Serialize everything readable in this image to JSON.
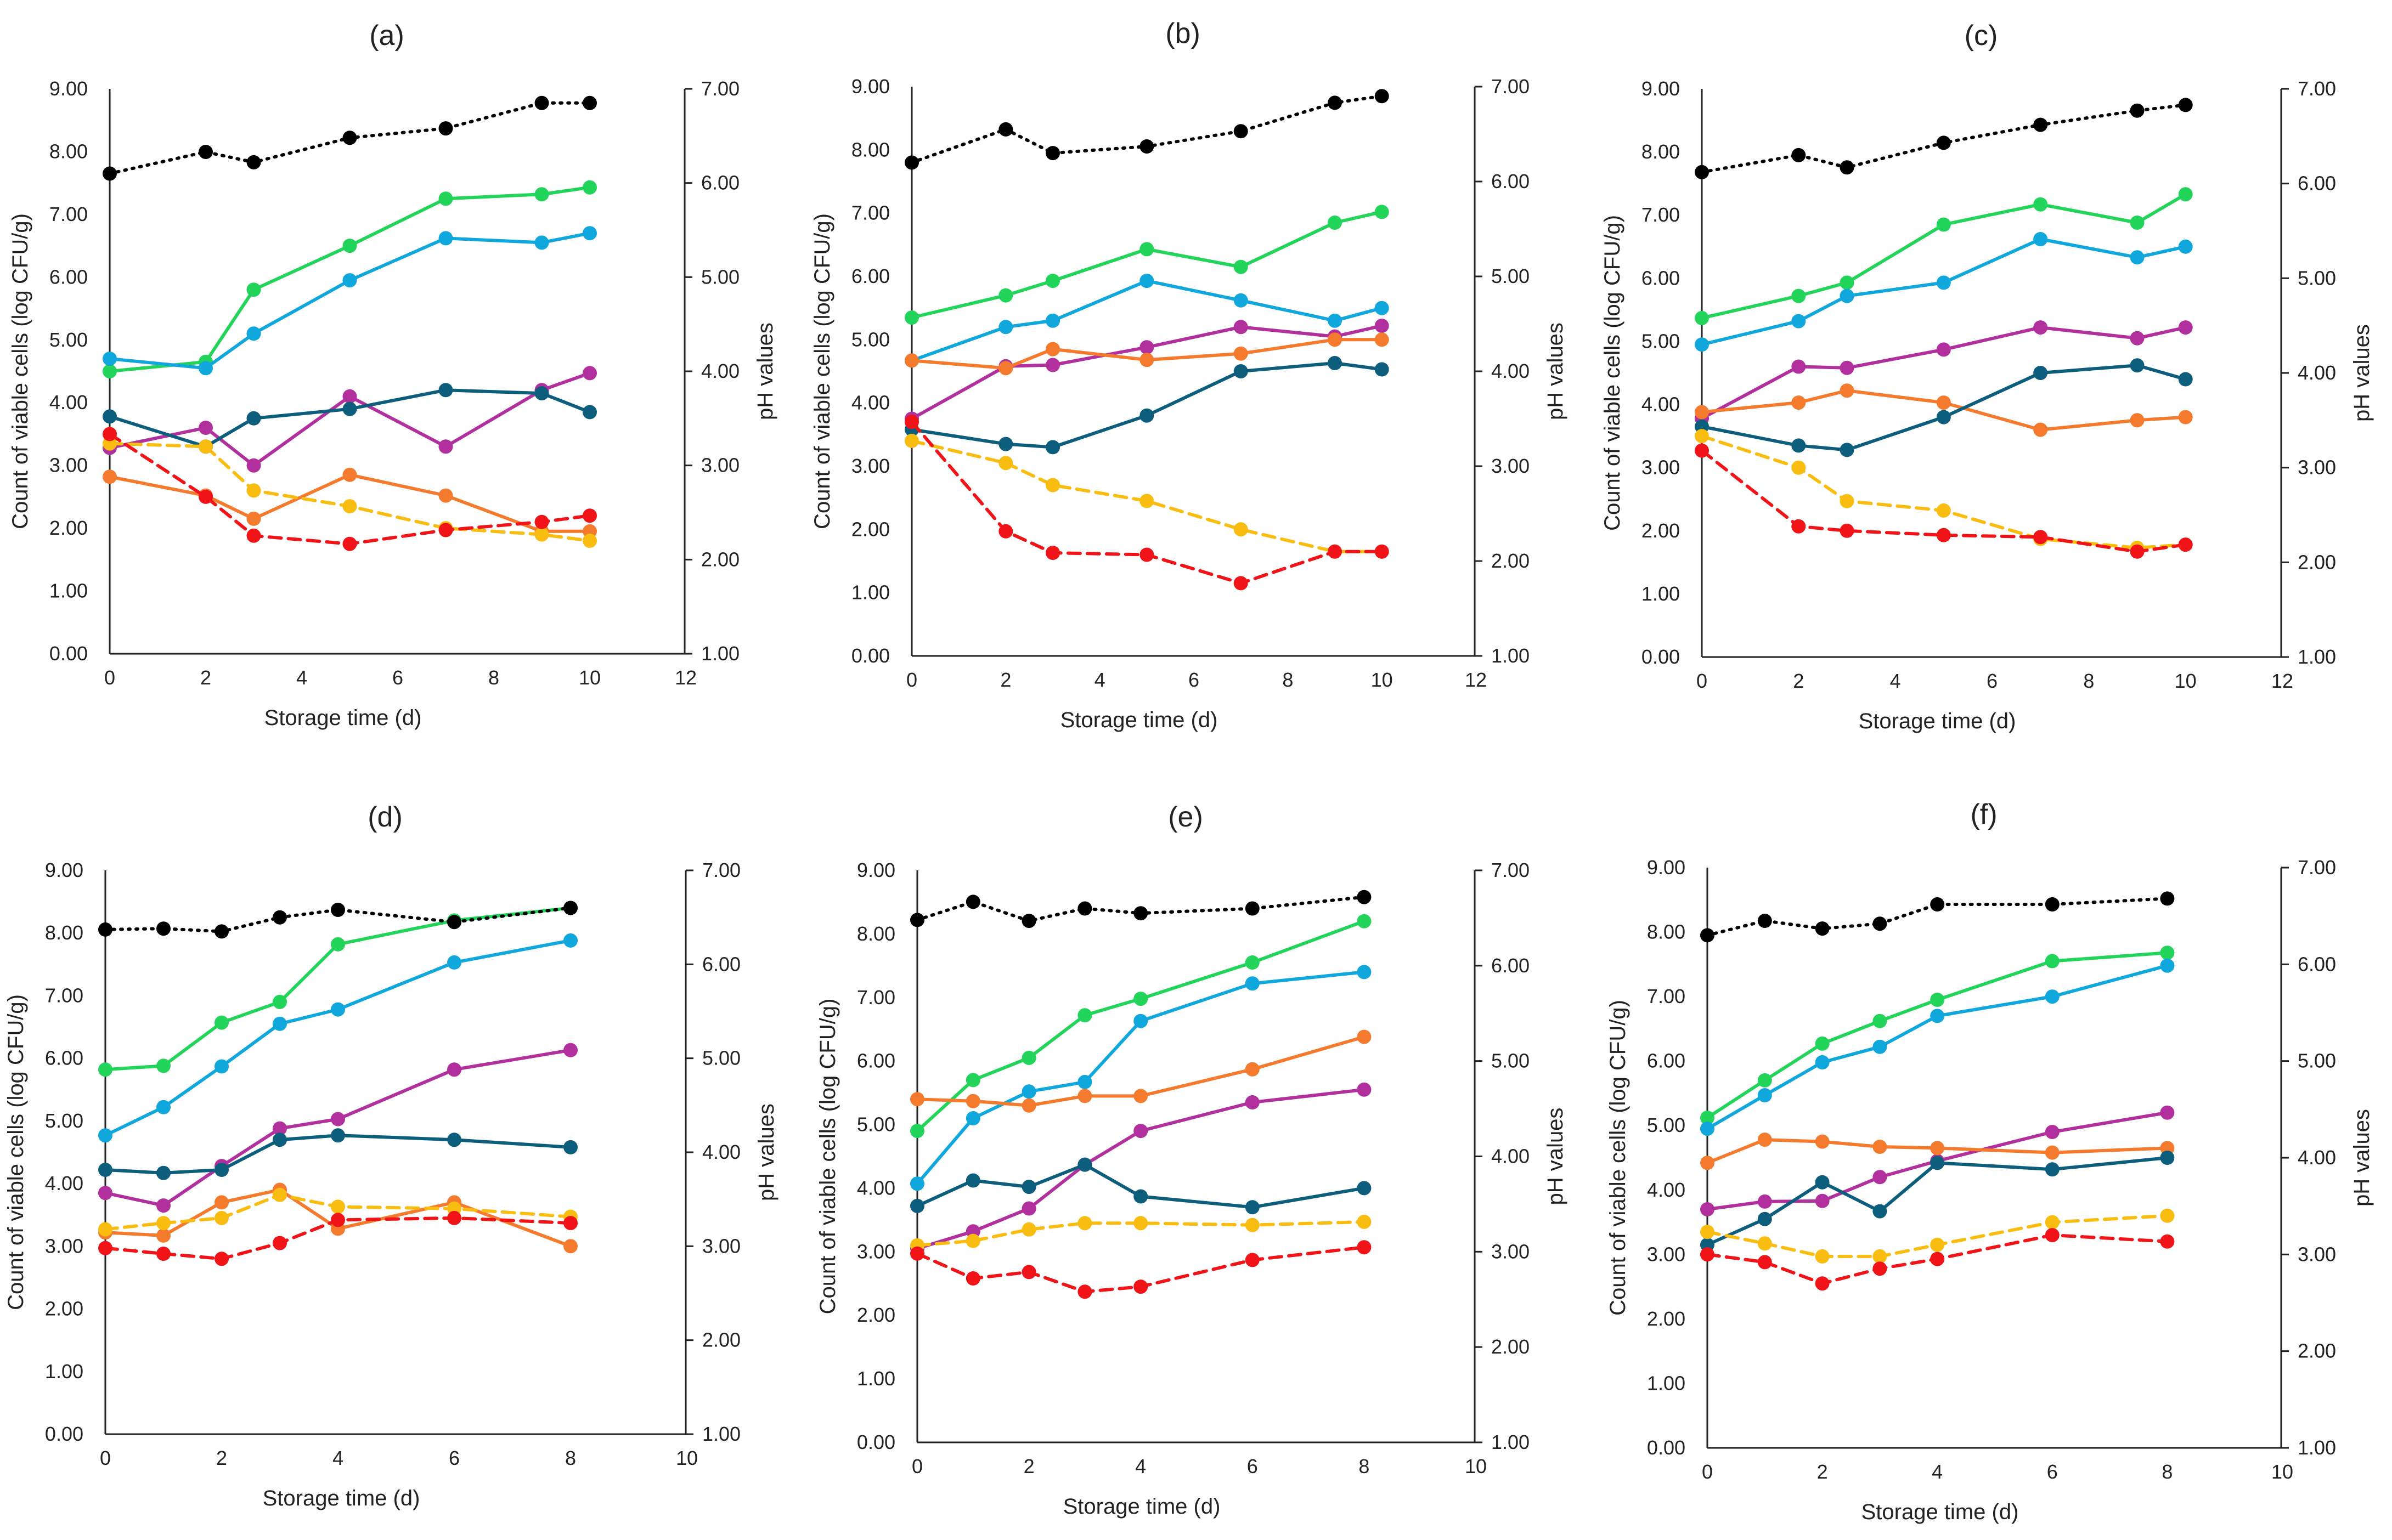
{
  "figure": {
    "panel_count": 6
  },
  "series_styles": [
    {
      "key": "green",
      "color": "#22d45a",
      "dash": "solid"
    },
    {
      "key": "blue",
      "color": "#10a7dd",
      "dash": "solid"
    },
    {
      "key": "purple",
      "color": "#b1309d",
      "dash": "solid"
    },
    {
      "key": "orange",
      "color": "#f47a2e",
      "dash": "solid"
    },
    {
      "key": "teal",
      "color": "#0d5e7c",
      "dash": "solid"
    },
    {
      "key": "yellow",
      "color": "#f8bd10",
      "dash": "dashed"
    },
    {
      "key": "red",
      "color": "#f01418",
      "dash": "dashed"
    },
    {
      "key": "black",
      "color": "#000000",
      "dash": "dotted"
    }
  ],
  "chart_data": [
    {
      "type": "line",
      "panel_label": "(a)",
      "xlabel": "Storage time (d)",
      "ylabel": "Count of viable cells (log CFU/g)",
      "y2label": "pH values",
      "xlim": [
        0,
        12
      ],
      "xticks": [
        "0",
        "2",
        "4",
        "6",
        "8",
        "10",
        "12"
      ],
      "ylim": [
        0,
        9
      ],
      "yticks": [
        "0.00",
        "1.00",
        "2.00",
        "3.00",
        "4.00",
        "5.00",
        "6.00",
        "7.00",
        "8.00",
        "9.00"
      ],
      "y2lim": [
        1,
        7
      ],
      "y2ticks": [
        "1.00",
        "2.00",
        "3.00",
        "4.00",
        "5.00",
        "6.00",
        "7.00"
      ],
      "x": [
        0,
        2,
        3,
        5,
        7,
        9,
        10
      ],
      "series": [
        {
          "key": "green",
          "axis": "left",
          "values": [
            4.5,
            4.65,
            5.8,
            6.5,
            7.25,
            7.32,
            7.43
          ]
        },
        {
          "key": "blue",
          "axis": "left",
          "values": [
            4.7,
            4.55,
            5.1,
            5.95,
            6.62,
            6.55,
            6.7
          ]
        },
        {
          "key": "purple",
          "axis": "left",
          "values": [
            3.28,
            3.6,
            3.0,
            4.1,
            3.3,
            4.2,
            4.47
          ]
        },
        {
          "key": "orange",
          "axis": "left",
          "values": [
            2.82,
            2.52,
            2.15,
            2.85,
            2.52,
            1.95,
            1.95
          ]
        },
        {
          "key": "teal",
          "axis": "left",
          "values": [
            3.78,
            3.3,
            3.75,
            3.9,
            4.2,
            4.15,
            3.85
          ]
        },
        {
          "key": "yellow",
          "axis": "left",
          "values": [
            3.35,
            3.3,
            2.6,
            2.35,
            2.0,
            1.9,
            1.8
          ]
        },
        {
          "key": "red",
          "axis": "left",
          "values": [
            3.5,
            2.5,
            1.88,
            1.75,
            1.97,
            2.1,
            2.2
          ]
        },
        {
          "key": "black",
          "axis": "right",
          "values": [
            6.1,
            6.33,
            6.22,
            6.48,
            6.58,
            6.85,
            6.85
          ]
        }
      ]
    },
    {
      "type": "line",
      "panel_label": "(b)",
      "xlabel": "Storage time (d)",
      "ylabel": "Count of viable cells (log CFU/g)",
      "y2label": "pH values",
      "xlim": [
        0,
        12
      ],
      "xticks": [
        "0",
        "2",
        "4",
        "6",
        "8",
        "10",
        "12"
      ],
      "ylim": [
        0,
        9
      ],
      "yticks": [
        "0.00",
        "1.00",
        "2.00",
        "3.00",
        "4.00",
        "5.00",
        "6.00",
        "7.00",
        "8.00",
        "9.00"
      ],
      "y2lim": [
        1,
        7
      ],
      "y2ticks": [
        "1.00",
        "2.00",
        "3.00",
        "4.00",
        "5.00",
        "6.00",
        "7.00"
      ],
      "x": [
        0,
        2,
        3,
        5,
        7,
        9,
        10
      ],
      "series": [
        {
          "key": "green",
          "axis": "left",
          "values": [
            5.35,
            5.7,
            5.93,
            6.43,
            6.15,
            6.85,
            7.02
          ]
        },
        {
          "key": "blue",
          "axis": "left",
          "values": [
            4.67,
            5.2,
            5.3,
            5.93,
            5.62,
            5.3,
            5.5
          ]
        },
        {
          "key": "purple",
          "axis": "left",
          "values": [
            3.75,
            4.58,
            4.6,
            4.88,
            5.2,
            5.05,
            5.22
          ]
        },
        {
          "key": "orange",
          "axis": "left",
          "values": [
            4.67,
            4.55,
            4.85,
            4.68,
            4.78,
            5.0,
            5.0
          ]
        },
        {
          "key": "teal",
          "axis": "left",
          "values": [
            3.58,
            3.35,
            3.3,
            3.8,
            4.5,
            4.63,
            4.53
          ]
        },
        {
          "key": "yellow",
          "axis": "left",
          "values": [
            3.4,
            3.05,
            2.7,
            2.45,
            2.0,
            1.65,
            1.65
          ]
        },
        {
          "key": "red",
          "axis": "left",
          "values": [
            3.7,
            1.97,
            1.63,
            1.6,
            1.15,
            1.65,
            1.65
          ]
        },
        {
          "key": "black",
          "axis": "right",
          "values": [
            6.2,
            6.55,
            6.3,
            6.37,
            6.53,
            6.83,
            6.9
          ]
        }
      ]
    },
    {
      "type": "line",
      "panel_label": "(c)",
      "xlabel": "Storage time (d)",
      "ylabel": "Count of viable cells (log CFU/g)",
      "y2label": "pH values",
      "xlim": [
        0,
        12
      ],
      "xticks": [
        "0",
        "2",
        "4",
        "6",
        "8",
        "10",
        "12"
      ],
      "ylim": [
        0,
        9
      ],
      "yticks": [
        "0.00",
        "1.00",
        "2.00",
        "3.00",
        "4.00",
        "5.00",
        "6.00",
        "7.00",
        "8.00",
        "9.00"
      ],
      "y2lim": [
        1,
        7
      ],
      "y2ticks": [
        "1.00",
        "2.00",
        "3.00",
        "4.00",
        "5.00",
        "6.00",
        "7.00"
      ],
      "x": [
        0,
        2,
        3,
        5,
        7,
        9,
        10
      ],
      "series": [
        {
          "key": "green",
          "axis": "left",
          "values": [
            5.37,
            5.72,
            5.93,
            6.85,
            7.17,
            6.88,
            7.33
          ]
        },
        {
          "key": "blue",
          "axis": "left",
          "values": [
            4.95,
            5.32,
            5.72,
            5.93,
            6.62,
            6.33,
            6.5
          ]
        },
        {
          "key": "purple",
          "axis": "left",
          "values": [
            3.78,
            4.6,
            4.58,
            4.87,
            5.22,
            5.05,
            5.22
          ]
        },
        {
          "key": "orange",
          "axis": "left",
          "values": [
            3.88,
            4.03,
            4.22,
            4.03,
            3.6,
            3.75,
            3.8
          ]
        },
        {
          "key": "teal",
          "axis": "left",
          "values": [
            3.65,
            3.35,
            3.28,
            3.8,
            4.5,
            4.62,
            4.4
          ]
        },
        {
          "key": "yellow",
          "axis": "left",
          "values": [
            3.5,
            3.0,
            2.47,
            2.32,
            1.87,
            1.73,
            1.78
          ]
        },
        {
          "key": "red",
          "axis": "left",
          "values": [
            3.27,
            2.07,
            2.0,
            1.93,
            1.9,
            1.67,
            1.78
          ]
        },
        {
          "key": "black",
          "axis": "right",
          "values": [
            6.12,
            6.3,
            6.17,
            6.43,
            6.62,
            6.77,
            6.83
          ]
        }
      ]
    },
    {
      "type": "line",
      "panel_label": "(d)",
      "xlabel": "Storage time (d)",
      "ylabel": "Count of viable cells (log CFU/g)",
      "y2label": "pH values",
      "xlim": [
        0,
        10
      ],
      "xticks": [
        "0",
        "2",
        "4",
        "6",
        "8",
        "10"
      ],
      "ylim": [
        0,
        9
      ],
      "yticks": [
        "0.00",
        "1.00",
        "2.00",
        "3.00",
        "4.00",
        "5.00",
        "6.00",
        "7.00",
        "8.00",
        "9.00"
      ],
      "y2lim": [
        1,
        7
      ],
      "y2ticks": [
        "1.00",
        "2.00",
        "3.00",
        "4.00",
        "5.00",
        "6.00",
        "7.00"
      ],
      "x": [
        0,
        1,
        2,
        3,
        4,
        6,
        8
      ],
      "series": [
        {
          "key": "green",
          "axis": "left",
          "values": [
            5.82,
            5.88,
            6.57,
            6.9,
            7.82,
            8.2,
            8.4
          ]
        },
        {
          "key": "blue",
          "axis": "left",
          "values": [
            4.77,
            5.22,
            5.87,
            6.55,
            6.78,
            7.53,
            7.88
          ]
        },
        {
          "key": "purple",
          "axis": "left",
          "values": [
            3.85,
            3.65,
            4.28,
            4.88,
            5.03,
            5.82,
            6.13
          ]
        },
        {
          "key": "orange",
          "axis": "left",
          "values": [
            3.22,
            3.17,
            3.7,
            3.9,
            3.28,
            3.7,
            3.0
          ]
        },
        {
          "key": "teal",
          "axis": "left",
          "values": [
            4.22,
            4.17,
            4.22,
            4.7,
            4.77,
            4.7,
            4.58
          ]
        },
        {
          "key": "yellow",
          "axis": "left",
          "values": [
            3.27,
            3.37,
            3.45,
            3.82,
            3.63,
            3.6,
            3.47
          ]
        },
        {
          "key": "red",
          "axis": "left",
          "values": [
            2.97,
            2.88,
            2.8,
            3.05,
            3.42,
            3.45,
            3.37
          ]
        },
        {
          "key": "black",
          "axis": "right",
          "values": [
            6.37,
            6.38,
            6.35,
            6.5,
            6.58,
            6.45,
            6.6
          ]
        }
      ]
    },
    {
      "type": "line",
      "panel_label": "(e)",
      "xlabel": "Storage time (d)",
      "ylabel": "Count of viable cells (log CFU/g)",
      "y2label": "pH values",
      "xlim": [
        0,
        10
      ],
      "xticks": [
        "0",
        "2",
        "4",
        "6",
        "8",
        "10"
      ],
      "ylim": [
        0,
        9
      ],
      "yticks": [
        "0.00",
        "1.00",
        "2.00",
        "3.00",
        "4.00",
        "5.00",
        "6.00",
        "7.00",
        "8.00",
        "9.00"
      ],
      "y2lim": [
        1,
        7
      ],
      "y2ticks": [
        "1.00",
        "2.00",
        "3.00",
        "4.00",
        "5.00",
        "6.00",
        "7.00"
      ],
      "x": [
        0,
        1,
        2,
        3,
        4,
        6,
        8
      ],
      "series": [
        {
          "key": "green",
          "axis": "left",
          "values": [
            4.9,
            5.7,
            6.05,
            6.72,
            6.98,
            7.55,
            8.2
          ]
        },
        {
          "key": "blue",
          "axis": "left",
          "values": [
            4.07,
            5.1,
            5.52,
            5.67,
            6.63,
            7.22,
            7.4
          ]
        },
        {
          "key": "purple",
          "axis": "left",
          "values": [
            3.05,
            3.32,
            3.68,
            4.37,
            4.9,
            5.35,
            5.55
          ]
        },
        {
          "key": "orange",
          "axis": "left",
          "values": [
            5.4,
            5.37,
            5.3,
            5.45,
            5.45,
            5.87,
            6.38
          ]
        },
        {
          "key": "teal",
          "axis": "left",
          "values": [
            3.72,
            4.12,
            4.02,
            4.37,
            3.87,
            3.7,
            4.0
          ]
        },
        {
          "key": "yellow",
          "axis": "left",
          "values": [
            3.1,
            3.17,
            3.35,
            3.45,
            3.45,
            3.42,
            3.47
          ]
        },
        {
          "key": "red",
          "axis": "left",
          "values": [
            2.97,
            2.58,
            2.68,
            2.37,
            2.45,
            2.87,
            3.07
          ]
        },
        {
          "key": "black",
          "axis": "right",
          "values": [
            6.48,
            6.67,
            6.47,
            6.6,
            6.55,
            6.6,
            6.72
          ]
        }
      ]
    },
    {
      "type": "line",
      "panel_label": "(f)",
      "xlabel": "Storage time (d)",
      "ylabel": "Count of viable cells (log CFU/g)",
      "y2label": "pH values",
      "xlim": [
        0,
        10
      ],
      "xticks": [
        "0",
        "2",
        "4",
        "6",
        "8",
        "10"
      ],
      "ylim": [
        0,
        9
      ],
      "yticks": [
        "0.00",
        "1.00",
        "2.00",
        "3.00",
        "4.00",
        "5.00",
        "6.00",
        "7.00",
        "8.00",
        "9.00"
      ],
      "y2lim": [
        1,
        7
      ],
      "y2ticks": [
        "1.00",
        "2.00",
        "3.00",
        "4.00",
        "5.00",
        "6.00",
        "7.00"
      ],
      "x": [
        0,
        1,
        2,
        3,
        4,
        6,
        8
      ],
      "series": [
        {
          "key": "green",
          "axis": "left",
          "values": [
            5.12,
            5.7,
            6.27,
            6.62,
            6.95,
            7.55,
            7.68
          ]
        },
        {
          "key": "blue",
          "axis": "left",
          "values": [
            4.95,
            5.47,
            5.98,
            6.22,
            6.7,
            7.0,
            7.48
          ]
        },
        {
          "key": "purple",
          "axis": "left",
          "values": [
            3.7,
            3.82,
            3.83,
            4.2,
            4.45,
            4.9,
            5.2
          ]
        },
        {
          "key": "orange",
          "axis": "left",
          "values": [
            4.42,
            4.78,
            4.75,
            4.67,
            4.65,
            4.58,
            4.65
          ]
        },
        {
          "key": "teal",
          "axis": "left",
          "values": [
            3.15,
            3.55,
            4.12,
            3.67,
            4.42,
            4.32,
            4.5
          ]
        },
        {
          "key": "yellow",
          "axis": "left",
          "values": [
            3.35,
            3.17,
            2.97,
            2.97,
            3.15,
            3.5,
            3.6
          ]
        },
        {
          "key": "red",
          "axis": "left",
          "values": [
            3.0,
            2.88,
            2.55,
            2.78,
            2.93,
            3.3,
            3.2
          ]
        },
        {
          "key": "black",
          "axis": "right",
          "values": [
            6.3,
            6.45,
            6.37,
            6.42,
            6.62,
            6.62,
            6.68
          ]
        }
      ]
    }
  ]
}
